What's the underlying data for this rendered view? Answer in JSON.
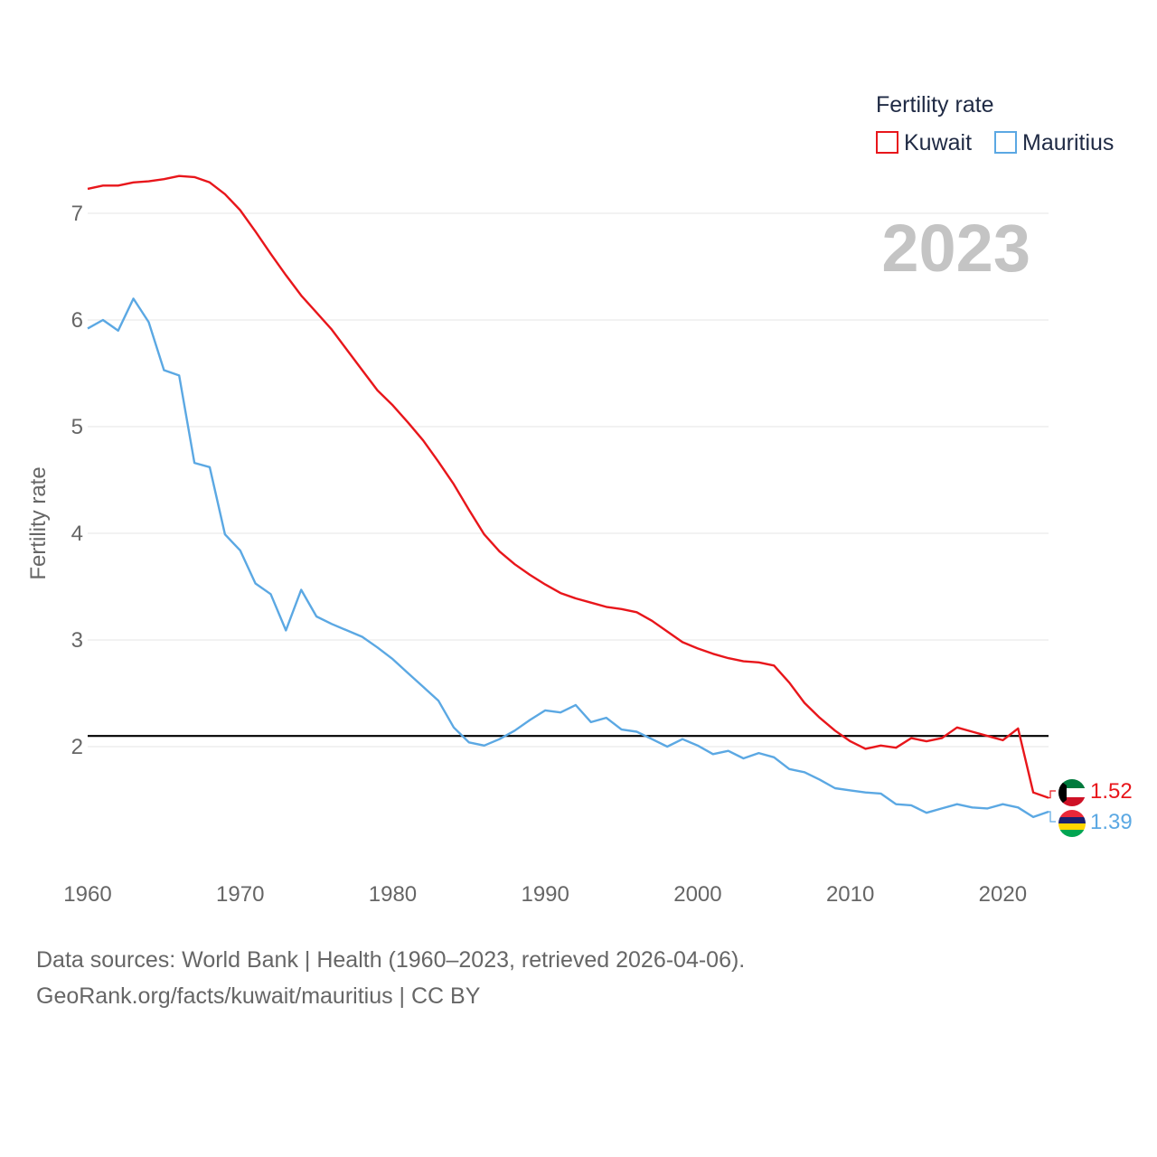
{
  "year_label": "2023",
  "chart_data": {
    "type": "line",
    "title": "",
    "xlabel": "",
    "ylabel": "Fertility rate",
    "xlim": [
      1960,
      2023
    ],
    "ylim": [
      1,
      7.5
    ],
    "yticks": [
      2,
      3,
      4,
      5,
      6,
      7
    ],
    "xticks": [
      1960,
      1970,
      1980,
      1990,
      2000,
      2010,
      2020
    ],
    "reference_line": 2.1,
    "legend": {
      "title": "Fertility rate",
      "position": "top-right"
    },
    "x": [
      1960,
      1961,
      1962,
      1963,
      1964,
      1965,
      1966,
      1967,
      1968,
      1969,
      1970,
      1971,
      1972,
      1973,
      1974,
      1975,
      1976,
      1977,
      1978,
      1979,
      1980,
      1981,
      1982,
      1983,
      1984,
      1985,
      1986,
      1987,
      1988,
      1989,
      1990,
      1991,
      1992,
      1993,
      1994,
      1995,
      1996,
      1997,
      1998,
      1999,
      2000,
      2001,
      2002,
      2003,
      2004,
      2005,
      2006,
      2007,
      2008,
      2009,
      2010,
      2011,
      2012,
      2013,
      2014,
      2015,
      2016,
      2017,
      2018,
      2019,
      2020,
      2021,
      2022,
      2023
    ],
    "series": [
      {
        "name": "Kuwait",
        "color": "#e8161b",
        "end_label": "1.52",
        "flag": "kuwait-flag",
        "values": [
          7.23,
          7.26,
          7.26,
          7.29,
          7.3,
          7.32,
          7.35,
          7.34,
          7.29,
          7.18,
          7.03,
          6.83,
          6.62,
          6.42,
          6.23,
          6.07,
          5.91,
          5.72,
          5.53,
          5.34,
          5.2,
          5.04,
          4.87,
          4.67,
          4.46,
          4.22,
          3.99,
          3.83,
          3.71,
          3.61,
          3.52,
          3.44,
          3.39,
          3.35,
          3.31,
          3.29,
          3.26,
          3.18,
          3.08,
          2.98,
          2.92,
          2.87,
          2.83,
          2.8,
          2.79,
          2.76,
          2.6,
          2.41,
          2.27,
          2.15,
          2.05,
          1.98,
          2.01,
          1.99,
          2.08,
          2.05,
          2.08,
          2.18,
          2.14,
          2.1,
          2.06,
          2.17,
          1.57,
          1.52
        ]
      },
      {
        "name": "Mauritius",
        "color": "#5ba8e3",
        "end_label": "1.39",
        "flag": "mauritius-flag",
        "values": [
          5.92,
          6.0,
          5.9,
          6.2,
          5.98,
          5.53,
          5.48,
          4.66,
          4.62,
          3.99,
          3.84,
          3.53,
          3.43,
          3.09,
          3.47,
          3.22,
          3.15,
          3.09,
          3.03,
          2.93,
          2.82,
          2.69,
          2.56,
          2.43,
          2.18,
          2.04,
          2.01,
          2.07,
          2.15,
          2.25,
          2.34,
          2.32,
          2.39,
          2.23,
          2.27,
          2.16,
          2.14,
          2.07,
          2.0,
          2.07,
          2.01,
          1.93,
          1.96,
          1.89,
          1.94,
          1.9,
          1.79,
          1.76,
          1.69,
          1.61,
          1.59,
          1.57,
          1.56,
          1.46,
          1.45,
          1.38,
          1.42,
          1.46,
          1.43,
          1.42,
          1.46,
          1.43,
          1.34,
          1.39
        ]
      }
    ]
  },
  "footer": {
    "line1": "Data sources: World Bank | Health (1960–2023, retrieved 2026-04-06).",
    "line2": "GeoRank.org/facts/kuwait/mauritius | CC BY"
  }
}
